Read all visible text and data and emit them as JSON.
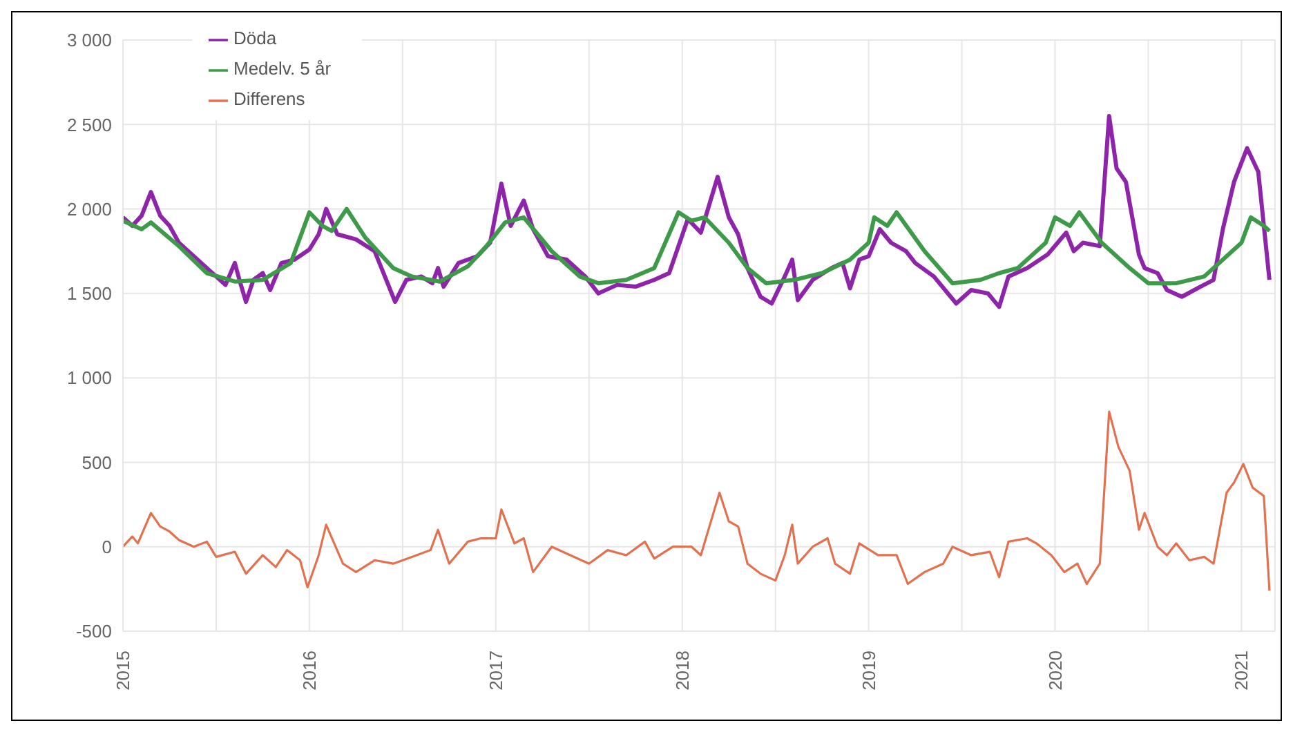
{
  "chart_data": {
    "type": "line",
    "xlim": [
      2015,
      2021.18
    ],
    "ylim": [
      -500,
      3000
    ],
    "xticks": [
      2015,
      {
        "value": 2015.5,
        "label": null
      },
      2016,
      {
        "value": 2016.5,
        "label": null
      },
      2017,
      {
        "value": 2017.5,
        "label": null
      },
      2018,
      {
        "value": 2018.5,
        "label": null
      },
      2019,
      {
        "value": 2019.5,
        "label": null
      },
      2020,
      {
        "value": 2020.5,
        "label": null
      },
      2021
    ],
    "yticks": [
      -500,
      0,
      500,
      {
        "value": 1000,
        "label": "1 000"
      },
      {
        "value": 1500,
        "label": "1 500"
      },
      {
        "value": 2000,
        "label": "2 000"
      },
      {
        "value": 2500,
        "label": "2 500"
      },
      {
        "value": 3000,
        "label": "3 000"
      }
    ],
    "grid": true,
    "legend": "top left",
    "series": [
      {
        "name": "Döda",
        "color": "#8e24aa",
        "x": [
          2015,
          2015.05,
          2015.1,
          2015.15,
          2015.2,
          2015.25,
          2015.3,
          2015.4,
          2015.5,
          2015.55,
          2015.6,
          2015.63,
          2015.66,
          2015.7,
          2015.75,
          2015.79,
          2015.85,
          2015.92,
          2016,
          2016.05,
          2016.09,
          2016.15,
          2016.25,
          2016.35,
          2016.46,
          2016.52,
          2016.6,
          2016.66,
          2016.69,
          2016.72,
          2016.8,
          2016.9,
          2016.97,
          2017.03,
          2017.08,
          2017.15,
          2017.2,
          2017.28,
          2017.38,
          2017.48,
          2017.55,
          2017.65,
          2017.75,
          2017.85,
          2017.93,
          2018.03,
          2018.1,
          2018.19,
          2018.25,
          2018.3,
          2018.35,
          2018.42,
          2018.48,
          2018.55,
          2018.59,
          2018.62,
          2018.7,
          2018.8,
          2018.86,
          2018.9,
          2018.95,
          2019,
          2019.06,
          2019.12,
          2019.2,
          2019.25,
          2019.35,
          2019.47,
          2019.55,
          2019.64,
          2019.7,
          2019.75,
          2019.85,
          2019.96,
          2020.06,
          2020.1,
          2020.15,
          2020.24,
          2020.29,
          2020.33,
          2020.38,
          2020.45,
          2020.48,
          2020.55,
          2020.6,
          2020.68,
          2020.78,
          2020.85,
          2020.9,
          2020.96,
          2021.03,
          2021.09,
          2021.15
        ],
        "values": [
          1950,
          1900,
          1960,
          2100,
          1960,
          1900,
          1800,
          1700,
          1600,
          1550,
          1680,
          1560,
          1450,
          1580,
          1620,
          1520,
          1680,
          1700,
          1760,
          1850,
          2000,
          1850,
          1820,
          1750,
          1450,
          1580,
          1600,
          1560,
          1650,
          1540,
          1680,
          1720,
          1800,
          2150,
          1900,
          2050,
          1880,
          1720,
          1700,
          1600,
          1500,
          1550,
          1540,
          1580,
          1620,
          1940,
          1860,
          2190,
          1950,
          1850,
          1650,
          1480,
          1440,
          1600,
          1700,
          1460,
          1580,
          1650,
          1680,
          1530,
          1700,
          1720,
          1880,
          1800,
          1750,
          1680,
          1600,
          1440,
          1520,
          1500,
          1420,
          1600,
          1650,
          1730,
          1860,
          1750,
          1800,
          1780,
          2550,
          2240,
          2160,
          1730,
          1650,
          1620,
          1520,
          1480,
          1540,
          1580,
          1880,
          2160,
          2360,
          2220,
          1580
        ]
      },
      {
        "name": "Medelv. 5 år",
        "color": "#3c9a48",
        "x": [
          2015,
          2015.1,
          2015.15,
          2015.3,
          2015.45,
          2015.6,
          2015.75,
          2015.9,
          2016,
          2016.07,
          2016.12,
          2016.2,
          2016.3,
          2016.45,
          2016.55,
          2016.7,
          2016.85,
          2016.95,
          2017.05,
          2017.15,
          2017.3,
          2017.45,
          2017.55,
          2017.7,
          2017.85,
          2017.98,
          2018.05,
          2018.12,
          2018.25,
          2018.35,
          2018.45,
          2018.6,
          2018.75,
          2018.9,
          2019,
          2019.03,
          2019.1,
          2019.15,
          2019.3,
          2019.45,
          2019.6,
          2019.7,
          2019.8,
          2019.95,
          2020,
          2020.08,
          2020.13,
          2020.25,
          2020.4,
          2020.5,
          2020.65,
          2020.8,
          2020.9,
          2021,
          2021.05,
          2021.12,
          2021.15
        ],
        "values": [
          1930,
          1880,
          1920,
          1780,
          1620,
          1570,
          1580,
          1680,
          1980,
          1900,
          1870,
          2000,
          1830,
          1650,
          1600,
          1570,
          1660,
          1780,
          1920,
          1950,
          1750,
          1600,
          1560,
          1580,
          1650,
          1980,
          1930,
          1950,
          1800,
          1650,
          1560,
          1580,
          1620,
          1700,
          1800,
          1950,
          1900,
          1980,
          1750,
          1560,
          1580,
          1620,
          1650,
          1800,
          1950,
          1900,
          1980,
          1800,
          1650,
          1560,
          1560,
          1600,
          1700,
          1800,
          1950,
          1900,
          1870
        ]
      },
      {
        "name": "Differens",
        "color": "#e2714f",
        "x": [
          2015,
          2015.05,
          2015.08,
          2015.15,
          2015.2,
          2015.25,
          2015.3,
          2015.38,
          2015.45,
          2015.5,
          2015.6,
          2015.66,
          2015.75,
          2015.82,
          2015.88,
          2015.95,
          2015.99,
          2016.05,
          2016.09,
          2016.18,
          2016.25,
          2016.35,
          2016.45,
          2016.55,
          2016.65,
          2016.69,
          2016.75,
          2016.85,
          2016.92,
          2017,
          2017.03,
          2017.1,
          2017.15,
          2017.2,
          2017.3,
          2017.4,
          2017.5,
          2017.6,
          2017.7,
          2017.8,
          2017.85,
          2017.95,
          2018.05,
          2018.1,
          2018.2,
          2018.25,
          2018.3,
          2018.35,
          2018.42,
          2018.5,
          2018.55,
          2018.59,
          2018.62,
          2018.7,
          2018.78,
          2018.82,
          2018.9,
          2018.95,
          2019.05,
          2019.15,
          2019.21,
          2019.3,
          2019.4,
          2019.45,
          2019.55,
          2019.65,
          2019.7,
          2019.75,
          2019.85,
          2019.9,
          2019.98,
          2020.05,
          2020.12,
          2020.17,
          2020.24,
          2020.29,
          2020.34,
          2020.4,
          2020.45,
          2020.48,
          2020.55,
          2020.6,
          2020.65,
          2020.72,
          2020.8,
          2020.85,
          2020.92,
          2020.96,
          2021.01,
          2021.06,
          2021.12,
          2021.15
        ],
        "values": [
          0,
          60,
          20,
          200,
          120,
          90,
          40,
          0,
          30,
          -60,
          -30,
          -160,
          -50,
          -120,
          -20,
          -80,
          -240,
          -50,
          130,
          -100,
          -150,
          -80,
          -100,
          -60,
          -20,
          100,
          -100,
          30,
          50,
          50,
          220,
          20,
          50,
          -150,
          0,
          -50,
          -100,
          -20,
          -50,
          30,
          -70,
          0,
          0,
          -50,
          320,
          150,
          120,
          -100,
          -160,
          -200,
          -50,
          130,
          -100,
          0,
          50,
          -100,
          -160,
          20,
          -50,
          -50,
          -220,
          -150,
          -100,
          0,
          -50,
          -30,
          -180,
          30,
          50,
          20,
          -50,
          -150,
          -100,
          -220,
          -100,
          800,
          590,
          450,
          100,
          200,
          0,
          -50,
          20,
          -80,
          -60,
          -100,
          320,
          380,
          490,
          350,
          300,
          -260
        ]
      }
    ]
  }
}
